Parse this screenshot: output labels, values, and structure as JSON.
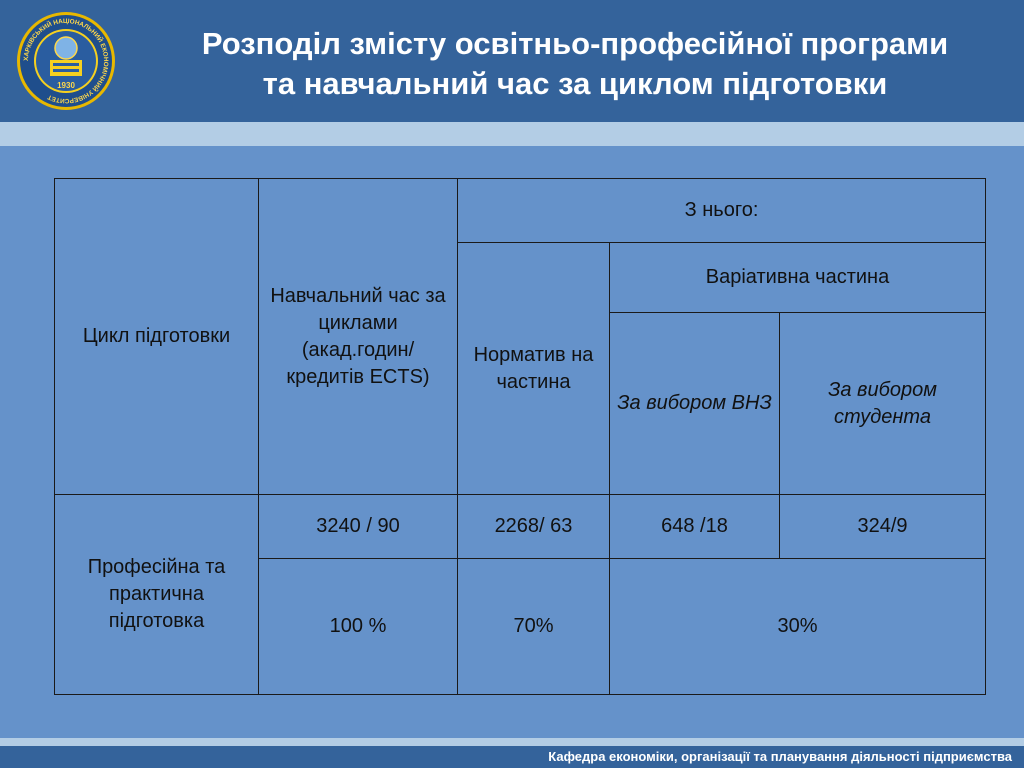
{
  "header": {
    "title_line1": "Розподіл змісту освітньо-професійної програми",
    "title_line2": "та навчальний час за циклом підготовки",
    "logo": {
      "icon": "university-seal-icon",
      "ring_text": "ХАРКІВСЬКИЙ НАЦІОНАЛЬНИЙ ЕКОНОМІЧНИЙ УНІВЕРСИТЕТ",
      "year": "1930"
    }
  },
  "table": {
    "headers": {
      "cycle": "Цикл підготовки",
      "study_time": "Навчальний час за циклами (акад.годин/ кредитів ECTS)",
      "of_which": "З нього:",
      "normative": "Норматив на частина",
      "variable": "Варіативна частина",
      "by_university": "За вибором ВНЗ",
      "by_student": "За вибором студента"
    },
    "row": {
      "cycle": "Професійна та практична підготовка",
      "study_time": "3240 / 90",
      "normative": "2268/ 63",
      "by_university": "648 /18",
      "by_student": "324/9",
      "study_time_pct": "100 %",
      "normative_pct": "70%",
      "variable_pct": "30%"
    }
  },
  "footer": {
    "text": "Кафедра економіки, організації та планування діяльності підприємства"
  },
  "colors": {
    "header_bg": "#34639b",
    "stripe": "#b3cde5",
    "body_bg": "#6592ca",
    "title_text": "#ffffff",
    "logo_gold": "#e8b800"
  }
}
